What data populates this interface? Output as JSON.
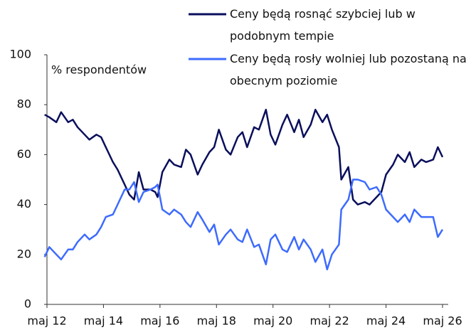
{
  "chart_data": {
    "type": "line",
    "annotation": "% respondentów",
    "x": [
      "2012-04",
      "2012-06",
      "2012-09",
      "2012-11",
      "2013-02",
      "2013-04",
      "2013-06",
      "2013-09",
      "2013-11",
      "2014-02",
      "2014-04",
      "2014-06",
      "2014-09",
      "2014-11",
      "2015-02",
      "2015-04",
      "2015-06",
      "2015-08",
      "2015-10",
      "2016-01",
      "2016-03",
      "2016-04",
      "2016-06",
      "2016-09",
      "2016-11",
      "2017-02",
      "2017-04",
      "2017-06",
      "2017-09",
      "2017-11",
      "2018-02",
      "2018-04",
      "2018-06",
      "2018-09",
      "2018-11",
      "2019-02",
      "2019-04",
      "2019-06",
      "2019-09",
      "2019-11",
      "2020-02",
      "2020-04",
      "2020-06",
      "2020-09",
      "2020-11",
      "2021-02",
      "2021-04",
      "2021-06",
      "2021-09",
      "2021-11",
      "2022-02",
      "2022-04",
      "2022-06",
      "2022-09",
      "2022-10",
      "2023-01",
      "2023-03",
      "2023-05",
      "2023-08",
      "2023-10",
      "2024-01",
      "2024-03",
      "2024-05",
      "2024-08",
      "2024-10",
      "2025-01",
      "2025-03",
      "2025-05",
      "2025-08",
      "2025-10",
      "2026-01",
      "2026-03",
      "2026-05"
    ],
    "series": [
      {
        "name": "Ceny będą rosnąć szybciej lub w podobnym tempie",
        "color": "#0a0f5c",
        "values": [
          76,
          75,
          73,
          77,
          73,
          74,
          71,
          68,
          66,
          68,
          67,
          63,
          57,
          54,
          48,
          44,
          42,
          53,
          46,
          46,
          45,
          43,
          53,
          58,
          56,
          55,
          62,
          60,
          52,
          56,
          61,
          63,
          70,
          62,
          60,
          67,
          69,
          63,
          71,
          70,
          78,
          68,
          64,
          72,
          76,
          69,
          74,
          67,
          72,
          78,
          73,
          76,
          70,
          63,
          50,
          55,
          42,
          40,
          41,
          40,
          43,
          45,
          52,
          56,
          60,
          57,
          61,
          55,
          58,
          57,
          58,
          63,
          59
        ]
      },
      {
        "name": "Ceny będą rosły wolniej lub pozostaną na obecnym poziomie",
        "color": "#3d6bff",
        "values": [
          19,
          23,
          20,
          18,
          22,
          22,
          25,
          28,
          26,
          28,
          31,
          35,
          36,
          40,
          46,
          46,
          49,
          41,
          45,
          46,
          47,
          48,
          38,
          36,
          38,
          36,
          33,
          31,
          37,
          34,
          29,
          32,
          24,
          28,
          30,
          26,
          25,
          30,
          23,
          24,
          16,
          26,
          28,
          22,
          21,
          27,
          22,
          26,
          22,
          17,
          22,
          14,
          20,
          24,
          38,
          42,
          50,
          50,
          49,
          46,
          47,
          44,
          38,
          35,
          33,
          36,
          33,
          38,
          35,
          35,
          35,
          27,
          30
        ]
      }
    ],
    "ylim": [
      0,
      100
    ],
    "yticks": [
      0,
      20,
      40,
      60,
      80,
      100
    ],
    "xticks": [
      {
        "value": "2012-05",
        "label": "maj 12"
      },
      {
        "value": "2014-05",
        "label": "maj 14"
      },
      {
        "value": "2016-05",
        "label": "maj 16"
      },
      {
        "value": "2018-05",
        "label": "maj 18"
      },
      {
        "value": "2020-05",
        "label": "maj 20"
      },
      {
        "value": "2022-05",
        "label": "maj 22"
      },
      {
        "value": "2024-05",
        "label": "maj 24"
      },
      {
        "value": "2026-05",
        "label": "maj 26"
      }
    ],
    "grid": false
  }
}
